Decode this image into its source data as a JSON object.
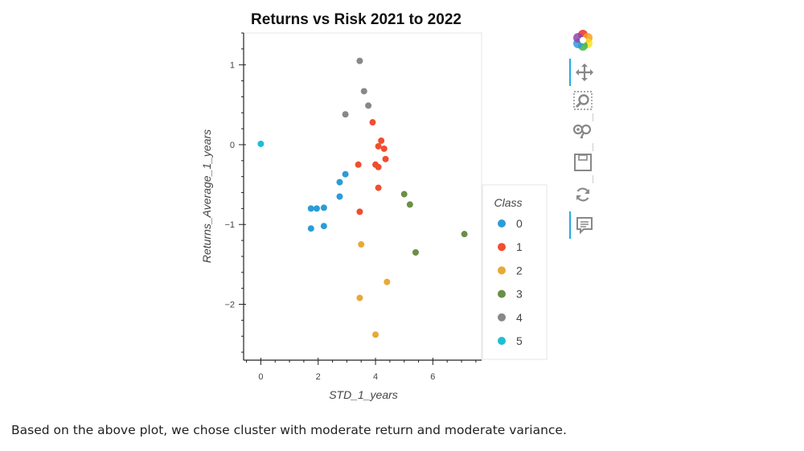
{
  "chart_data": {
    "type": "scatter",
    "title": "Returns vs Risk 2021 to 2022",
    "xlabel": "STD_1_years",
    "ylabel": "Returns_Average_1_years",
    "xlim": [
      -0.6,
      7.7
    ],
    "ylim": [
      -2.7,
      1.4
    ],
    "xticks": [
      0,
      2,
      4,
      6
    ],
    "yticks": [
      1,
      0,
      -1,
      -2
    ],
    "tick_labels": {
      "x": [
        "0",
        "2",
        "4",
        "6"
      ],
      "y": [
        "1",
        "0",
        "−1",
        "−2"
      ]
    },
    "grid": false,
    "legend": {
      "title": "Class",
      "placement": "right"
    },
    "series": [
      {
        "name": "0",
        "color": "#2b9cd8",
        "points": [
          [
            1.75,
            -0.8
          ],
          [
            1.95,
            -0.8
          ],
          [
            2.2,
            -0.79
          ],
          [
            2.75,
            -0.65
          ],
          [
            2.75,
            -0.47
          ],
          [
            2.95,
            -0.37
          ],
          [
            1.75,
            -1.05
          ],
          [
            2.2,
            -1.02
          ]
        ]
      },
      {
        "name": "1",
        "color": "#f04e2f",
        "points": [
          [
            3.9,
            0.28
          ],
          [
            4.2,
            0.05
          ],
          [
            4.1,
            -0.02
          ],
          [
            4.3,
            -0.05
          ],
          [
            4.35,
            -0.18
          ],
          [
            3.4,
            -0.25
          ],
          [
            4.0,
            -0.25
          ],
          [
            4.1,
            -0.28
          ],
          [
            4.1,
            -0.54
          ],
          [
            3.45,
            -0.84
          ]
        ]
      },
      {
        "name": "2",
        "color": "#e8a936",
        "points": [
          [
            3.5,
            -1.25
          ],
          [
            4.4,
            -1.72
          ],
          [
            3.45,
            -1.92
          ],
          [
            4.0,
            -2.38
          ]
        ]
      },
      {
        "name": "3",
        "color": "#6a8f48",
        "points": [
          [
            5.0,
            -0.62
          ],
          [
            5.2,
            -0.75
          ],
          [
            7.1,
            -1.12
          ],
          [
            5.4,
            -1.35
          ]
        ]
      },
      {
        "name": "4",
        "color": "#888888",
        "points": [
          [
            3.45,
            1.05
          ],
          [
            3.6,
            0.67
          ],
          [
            3.75,
            0.49
          ],
          [
            2.95,
            0.38
          ]
        ]
      },
      {
        "name": "5",
        "color": "#1bbfd3",
        "points": [
          [
            0.0,
            0.01
          ]
        ]
      }
    ]
  },
  "toolbar": {
    "tools": [
      {
        "name": "bokeh-logo-icon",
        "interactable": false
      },
      {
        "name": "pan-tool-icon",
        "interactable": true,
        "active": true
      },
      {
        "name": "box-zoom-tool-icon",
        "interactable": true
      },
      {
        "name": "wheel-zoom-tool-icon",
        "interactable": true
      },
      {
        "name": "save-tool-icon",
        "interactable": true
      },
      {
        "name": "reset-tool-icon",
        "interactable": true
      },
      {
        "name": "hover-tool-icon",
        "interactable": true,
        "active": true
      }
    ]
  },
  "caption": "Based on the above plot, we chose cluster with moderate return and moderate variance."
}
